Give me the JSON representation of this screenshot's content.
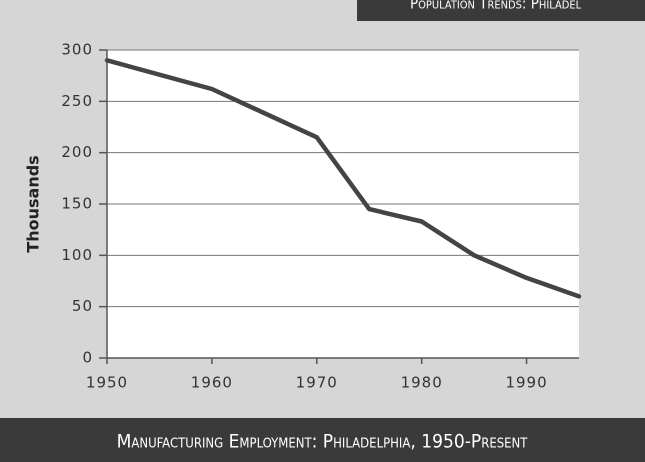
{
  "chart_data": {
    "type": "line",
    "title": "Manufacturing Employment: Philadelphia, 1950-Present",
    "header": "Population Trends: Philadel",
    "ylabel": "Thousands",
    "x": [
      1950,
      1960,
      1970,
      1975,
      1980,
      1985,
      1990,
      1995
    ],
    "series": [
      {
        "name": "Manufacturing employment",
        "color": "#444444",
        "values": [
          290,
          262,
          215,
          145,
          133,
          100,
          78,
          60
        ]
      }
    ],
    "xlim": [
      1950,
      1995
    ],
    "xticks": [
      1950,
      1960,
      1970,
      1980,
      1990
    ],
    "ylim": [
      0,
      300
    ],
    "yticks": [
      0,
      50,
      100,
      150,
      200,
      250,
      300
    ],
    "grid": true
  }
}
